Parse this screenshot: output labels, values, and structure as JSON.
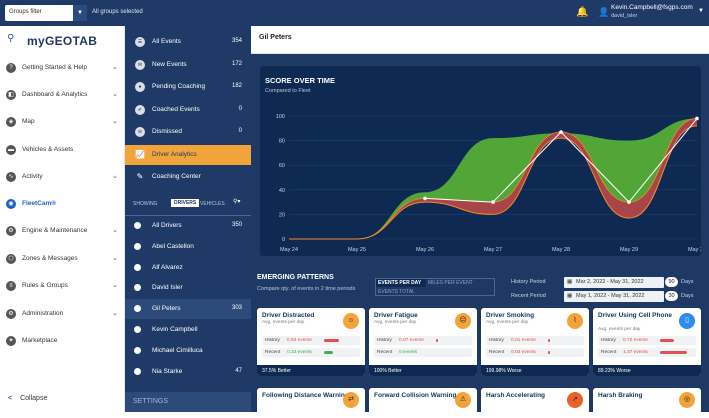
{
  "topbar": {
    "groups_filter": "Groups filter",
    "groups_selected": "All groups selected",
    "user_email": "Kevin.Campbell@fsgps.com",
    "user_name": "david_isler"
  },
  "brand": {
    "logo": "myGEOTAB"
  },
  "nav": [
    {
      "label": "Getting Started & Help",
      "icon": "help-icon",
      "chev": true
    },
    {
      "label": "Dashboard & Analytics",
      "icon": "dashboard-icon",
      "chev": true
    },
    {
      "label": "Map",
      "icon": "map-icon",
      "chev": true
    },
    {
      "label": "Vehicles & Assets",
      "icon": "truck-icon",
      "chev": false
    },
    {
      "label": "Activity",
      "icon": "activity-icon",
      "chev": true
    },
    {
      "label": "FleetCam®",
      "icon": "camera-icon",
      "chev": false,
      "active": true
    },
    {
      "label": "Engine & Maintenance",
      "icon": "engine-icon",
      "chev": true
    },
    {
      "label": "Zones & Messages",
      "icon": "zones-icon",
      "chev": true
    },
    {
      "label": "Rules & Groups",
      "icon": "rules-icon",
      "chev": true
    },
    {
      "label": "Administration",
      "icon": "admin-icon",
      "chev": true
    },
    {
      "label": "Marketplace",
      "icon": "marketplace-icon",
      "chev": false
    }
  ],
  "collapse": "Collapse",
  "events": [
    {
      "label": "All Events",
      "count": "354"
    },
    {
      "label": "New Events",
      "count": "172"
    },
    {
      "label": "Pending Coaching",
      "count": "182"
    },
    {
      "label": "Coached Events",
      "count": "0"
    },
    {
      "label": "Dismissed",
      "count": "0"
    }
  ],
  "analytics": {
    "driver_analytics": "Driver Analytics",
    "coaching_center": "Coaching Center"
  },
  "filter": {
    "showing": "SHOWING",
    "drivers": "DRIVERS",
    "vehicles": "VEHICLES"
  },
  "drivers": [
    {
      "name": "All Drivers",
      "count": "350"
    },
    {
      "name": "Abel Castellon",
      "count": ""
    },
    {
      "name": "Alf Alvarez",
      "count": ""
    },
    {
      "name": "David Isler",
      "count": ""
    },
    {
      "name": "Gil Peters",
      "count": "303",
      "selected": true
    },
    {
      "name": "Kevin Campbell",
      "count": ""
    },
    {
      "name": "Michael Cimilluca",
      "count": ""
    },
    {
      "name": "Nia Starke",
      "count": "47"
    }
  ],
  "settings": "SETTINGS",
  "main": {
    "title": "Gil Peters"
  },
  "chart_data": {
    "type": "area",
    "title": "SCORE OVER TIME",
    "subtitle": "Compared to Fleet",
    "categories": [
      "May 24",
      "May 25",
      "May 26",
      "May 27",
      "May 28",
      "May 29",
      "May 30"
    ],
    "y_ticks": [
      "0",
      "20",
      "40",
      "60",
      "80",
      "100"
    ],
    "ylim": [
      0,
      100
    ],
    "series": [
      {
        "name": "",
        "values": [
          0,
          0,
          33,
          30,
          87,
          30,
          98
        ]
      },
      {
        "name": "",
        "values": [
          0,
          0,
          38,
          82,
          86,
          80,
          98
        ]
      },
      {
        "name": "",
        "values": [
          0,
          0,
          30,
          20,
          82,
          17,
          92
        ]
      }
    ],
    "grid": true
  },
  "emerging": {
    "title": "EMERGING PATTERNS",
    "subtitle": "Compare qty. of events in 2 time periods",
    "tab_day": "EVENTS PER DAY",
    "tab_event": "MILES PER EVENT",
    "tab_total": "EVENTS TOTAL",
    "history_label": "History Period",
    "history_range": "Mar 2, 2022 - May 31, 2022",
    "history_days": "90",
    "recent_label": "Recent Period",
    "recent_range": "May 1, 2022 - May 31, 2022",
    "recent_days": "30",
    "days": "Days"
  },
  "cards": [
    {
      "title": "Driver Distracted",
      "sub": "Avg. events per day",
      "history": "0.53 events",
      "recent": "0.33 events",
      "footer": "37.5% Better",
      "icon": "distracted-icon",
      "hist_frac": 0.5,
      "rec_frac": 0.3,
      "rec_color": "#3cb44b"
    },
    {
      "title": "Driver Fatigue",
      "sub": "Avg. events per day",
      "history": "0.07 events",
      "recent": "0 events",
      "footer": "100% Better",
      "icon": "fatigue-icon",
      "hist_frac": 0.06,
      "rec_frac": 0,
      "rec_color": "#3cb44b"
    },
    {
      "title": "Driver Smoking",
      "sub": "Avg. events per day",
      "history": "0.01 events",
      "recent": "0.03 events",
      "footer": "199.98% Worse",
      "icon": "smoking-icon",
      "hist_frac": 0.01,
      "rec_frac": 0.03,
      "rec_color": "#e05252"
    },
    {
      "title": "Driver Using Cell Phone",
      "sub": "Avg. events per day",
      "history": "0.72 events",
      "recent": "1.37 events",
      "footer": "89.23% Worse",
      "icon": "phone-icon",
      "hist_frac": 0.45,
      "rec_frac": 0.9,
      "rec_color": "#e05252"
    }
  ],
  "cards2": [
    {
      "title": "Following Distance Warning",
      "icon": "following-icon"
    },
    {
      "title": "Forward Collision Warning",
      "icon": "collision-icon"
    },
    {
      "title": "Harsh Accelerating",
      "icon": "accel-icon"
    },
    {
      "title": "Harsh Braking",
      "icon": "braking-icon"
    }
  ]
}
